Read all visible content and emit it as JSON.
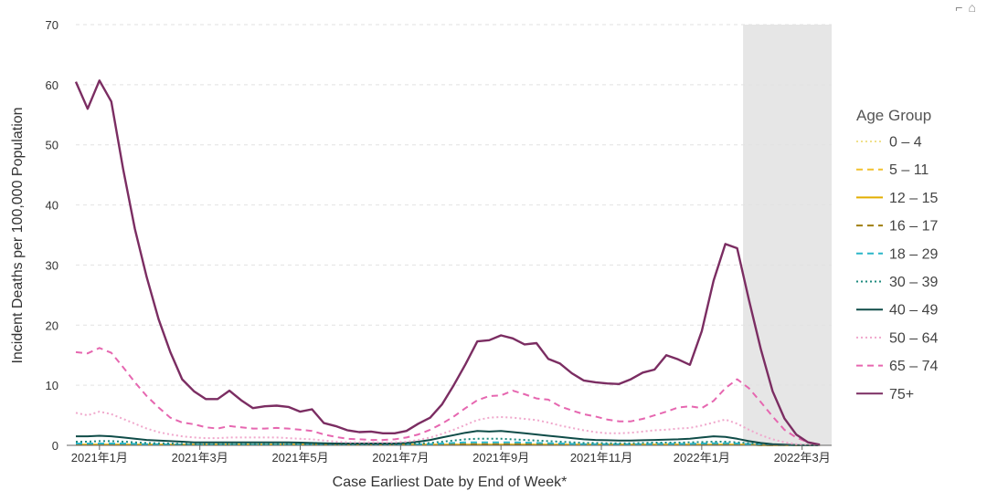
{
  "chart_data": {
    "type": "line",
    "title": "",
    "xlabel": "Case Earliest Date by End of Week*",
    "ylabel": "Incident Deaths per 100,000 Population",
    "ylim": [
      0,
      70
    ],
    "yticks": [
      0,
      10,
      20,
      30,
      40,
      50,
      60,
      70
    ],
    "xlim": [
      0,
      61
    ],
    "xticks": [
      {
        "pos": 2,
        "label": "2021年1月"
      },
      {
        "pos": 10.5,
        "label": "2021年3月"
      },
      {
        "pos": 19,
        "label": "2021年5月"
      },
      {
        "pos": 27.5,
        "label": "2021年7月"
      },
      {
        "pos": 36,
        "label": "2021年9月"
      },
      {
        "pos": 44.5,
        "label": "2021年11月"
      },
      {
        "pos": 53,
        "label": "2022年1月"
      },
      {
        "pos": 61.5,
        "label": "2022年3月"
      }
    ],
    "x_unit": "weeks starting late Dec 2020",
    "shaded_region": [
      56.5,
      62.5
    ],
    "grid": true,
    "legend": {
      "title": "Age Group",
      "placement": "right"
    },
    "series": [
      {
        "name": "0 – 4",
        "color": "#f0e08a",
        "dash": "dot",
        "values": [
          0.1,
          0.1,
          0.1,
          0.1,
          0.1,
          0.1,
          0.1,
          0.1,
          0.1,
          0.1,
          0.1,
          0.1,
          0.1,
          0.1,
          0.1,
          0.1,
          0.1,
          0.1,
          0.1,
          0.1,
          0.1,
          0.1,
          0.1,
          0.1,
          0.1,
          0.1,
          0.1,
          0.1,
          0.1,
          0.1,
          0.1,
          0.1,
          0.1,
          0.1,
          0.1,
          0.1,
          0.1,
          0.1,
          0.1,
          0.1,
          0.1,
          0.1,
          0.1,
          0.1,
          0.1,
          0.1,
          0.1,
          0.1,
          0.1,
          0.1,
          0.1,
          0.1,
          0.1,
          0.1,
          0.1,
          0.1,
          0.1,
          0.1,
          0.05,
          0.02,
          0.01,
          0.0,
          0.0,
          0.0
        ]
      },
      {
        "name": "5 – 11",
        "color": "#f2c12e",
        "dash": "dash",
        "values": [
          0.1,
          0.1,
          0.1,
          0.1,
          0.1,
          0.1,
          0.1,
          0.1,
          0.1,
          0.1,
          0.1,
          0.1,
          0.1,
          0.1,
          0.1,
          0.1,
          0.1,
          0.1,
          0.1,
          0.1,
          0.1,
          0.1,
          0.1,
          0.1,
          0.1,
          0.1,
          0.1,
          0.1,
          0.1,
          0.1,
          0.1,
          0.1,
          0.1,
          0.1,
          0.1,
          0.1,
          0.1,
          0.1,
          0.1,
          0.1,
          0.1,
          0.1,
          0.1,
          0.1,
          0.1,
          0.1,
          0.1,
          0.1,
          0.1,
          0.1,
          0.1,
          0.1,
          0.1,
          0.1,
          0.1,
          0.1,
          0.1,
          0.1,
          0.05,
          0.02,
          0.01,
          0.0,
          0.0,
          0.0
        ]
      },
      {
        "name": "12 – 15",
        "color": "#e2ae00",
        "dash": "solid",
        "values": [
          0.1,
          0.1,
          0.1,
          0.1,
          0.1,
          0.1,
          0.1,
          0.1,
          0.1,
          0.1,
          0.1,
          0.1,
          0.1,
          0.1,
          0.1,
          0.1,
          0.1,
          0.1,
          0.1,
          0.1,
          0.1,
          0.1,
          0.1,
          0.1,
          0.1,
          0.1,
          0.1,
          0.1,
          0.1,
          0.1,
          0.1,
          0.1,
          0.1,
          0.1,
          0.1,
          0.1,
          0.1,
          0.1,
          0.1,
          0.1,
          0.1,
          0.1,
          0.1,
          0.1,
          0.1,
          0.1,
          0.1,
          0.1,
          0.1,
          0.1,
          0.1,
          0.1,
          0.1,
          0.1,
          0.1,
          0.1,
          0.1,
          0.1,
          0.05,
          0.02,
          0.01,
          0.0,
          0.0,
          0.0
        ]
      },
      {
        "name": "16 – 17",
        "color": "#a07f10",
        "dash": "dash",
        "values": [
          0.15,
          0.15,
          0.15,
          0.15,
          0.15,
          0.1,
          0.1,
          0.1,
          0.1,
          0.1,
          0.1,
          0.1,
          0.1,
          0.1,
          0.1,
          0.1,
          0.1,
          0.1,
          0.1,
          0.1,
          0.1,
          0.1,
          0.1,
          0.1,
          0.1,
          0.1,
          0.1,
          0.1,
          0.1,
          0.1,
          0.1,
          0.15,
          0.2,
          0.2,
          0.2,
          0.2,
          0.2,
          0.2,
          0.2,
          0.15,
          0.15,
          0.1,
          0.1,
          0.1,
          0.1,
          0.1,
          0.1,
          0.1,
          0.1,
          0.1,
          0.1,
          0.1,
          0.1,
          0.15,
          0.2,
          0.2,
          0.15,
          0.1,
          0.05,
          0.02,
          0.01,
          0.0,
          0.0,
          0.0
        ]
      },
      {
        "name": "18 – 29",
        "color": "#2bb6c8",
        "dash": "dash",
        "values": [
          0.3,
          0.3,
          0.3,
          0.3,
          0.3,
          0.25,
          0.2,
          0.2,
          0.15,
          0.1,
          0.1,
          0.1,
          0.1,
          0.1,
          0.1,
          0.1,
          0.1,
          0.1,
          0.1,
          0.1,
          0.1,
          0.1,
          0.1,
          0.1,
          0.1,
          0.1,
          0.1,
          0.1,
          0.1,
          0.15,
          0.2,
          0.3,
          0.4,
          0.5,
          0.5,
          0.5,
          0.5,
          0.5,
          0.45,
          0.4,
          0.35,
          0.3,
          0.25,
          0.2,
          0.2,
          0.2,
          0.2,
          0.2,
          0.2,
          0.25,
          0.25,
          0.25,
          0.25,
          0.3,
          0.35,
          0.35,
          0.3,
          0.2,
          0.12,
          0.06,
          0.03,
          0.01,
          0.0,
          0.0
        ]
      },
      {
        "name": "30 – 39",
        "color": "#1d8a7e",
        "dash": "dot",
        "values": [
          0.6,
          0.6,
          0.7,
          0.7,
          0.6,
          0.5,
          0.4,
          0.35,
          0.3,
          0.25,
          0.2,
          0.2,
          0.2,
          0.2,
          0.2,
          0.2,
          0.2,
          0.2,
          0.2,
          0.2,
          0.2,
          0.15,
          0.15,
          0.15,
          0.15,
          0.15,
          0.15,
          0.15,
          0.2,
          0.3,
          0.4,
          0.6,
          0.8,
          1.0,
          1.1,
          1.1,
          1.1,
          1.0,
          0.9,
          0.8,
          0.7,
          0.6,
          0.5,
          0.4,
          0.4,
          0.35,
          0.35,
          0.35,
          0.4,
          0.45,
          0.45,
          0.45,
          0.5,
          0.55,
          0.6,
          0.6,
          0.5,
          0.35,
          0.2,
          0.1,
          0.05,
          0.02,
          0.0,
          0.0
        ]
      },
      {
        "name": "40 – 49",
        "color": "#0f4c48",
        "dash": "solid",
        "values": [
          1.5,
          1.5,
          1.6,
          1.5,
          1.3,
          1.1,
          0.9,
          0.8,
          0.7,
          0.6,
          0.5,
          0.5,
          0.5,
          0.5,
          0.5,
          0.5,
          0.5,
          0.5,
          0.5,
          0.45,
          0.4,
          0.35,
          0.3,
          0.3,
          0.3,
          0.3,
          0.3,
          0.3,
          0.4,
          0.6,
          0.9,
          1.3,
          1.7,
          2.1,
          2.4,
          2.3,
          2.4,
          2.2,
          2.0,
          1.8,
          1.6,
          1.4,
          1.2,
          1.0,
          0.9,
          0.85,
          0.8,
          0.8,
          0.85,
          0.9,
          0.95,
          1.0,
          1.1,
          1.3,
          1.5,
          1.4,
          1.1,
          0.7,
          0.4,
          0.2,
          0.1,
          0.03,
          0.01,
          0.0
        ]
      },
      {
        "name": "50 – 64",
        "color": "#f0a8cc",
        "dash": "dot",
        "values": [
          5.4,
          5.0,
          5.6,
          5.2,
          4.4,
          3.6,
          2.8,
          2.2,
          1.8,
          1.5,
          1.3,
          1.2,
          1.2,
          1.3,
          1.3,
          1.3,
          1.3,
          1.3,
          1.2,
          1.1,
          1.0,
          0.8,
          0.6,
          0.5,
          0.5,
          0.5,
          0.5,
          0.5,
          0.6,
          0.9,
          1.3,
          1.9,
          2.6,
          3.4,
          4.2,
          4.6,
          4.7,
          4.6,
          4.4,
          4.2,
          3.8,
          3.3,
          2.9,
          2.5,
          2.2,
          2.0,
          2.0,
          2.1,
          2.3,
          2.5,
          2.6,
          2.8,
          2.9,
          3.3,
          3.8,
          4.3,
          3.6,
          2.6,
          1.7,
          1.0,
          0.5,
          0.2,
          0.08,
          0.02
        ]
      },
      {
        "name": "65 – 74",
        "color": "#e667b0",
        "dash": "dash",
        "values": [
          15.5,
          15.3,
          16.2,
          15.4,
          13.0,
          10.5,
          8.2,
          6.3,
          4.6,
          3.8,
          3.5,
          3.0,
          2.8,
          3.2,
          3.0,
          2.8,
          2.8,
          2.9,
          2.8,
          2.6,
          2.4,
          1.8,
          1.4,
          1.1,
          1.0,
          0.9,
          0.9,
          1.0,
          1.3,
          1.8,
          2.6,
          3.6,
          4.8,
          6.2,
          7.5,
          8.2,
          8.3,
          9.1,
          8.5,
          7.8,
          7.6,
          6.5,
          5.8,
          5.2,
          4.8,
          4.3,
          4.0,
          4.0,
          4.4,
          5.0,
          5.6,
          6.3,
          6.5,
          6.2,
          7.4,
          9.5,
          11.0,
          9.5,
          7.2,
          4.8,
          2.6,
          1.3,
          0.5,
          0.15
        ]
      },
      {
        "name": "75+",
        "color": "#7b2d62",
        "dash": "solid",
        "values": [
          60.5,
          56.0,
          60.7,
          57.2,
          46.0,
          36.0,
          28.0,
          21.0,
          15.5,
          11.0,
          9.0,
          7.7,
          7.7,
          9.1,
          7.5,
          6.2,
          6.5,
          6.6,
          6.4,
          5.6,
          6.0,
          3.7,
          3.2,
          2.5,
          2.2,
          2.3,
          2.0,
          2.0,
          2.4,
          3.6,
          4.6,
          6.8,
          10.0,
          13.5,
          17.3,
          17.5,
          18.3,
          17.8,
          16.8,
          17.0,
          14.4,
          13.6,
          12.0,
          10.8,
          10.5,
          10.3,
          10.2,
          11.0,
          12.1,
          12.6,
          15.0,
          14.3,
          13.4,
          19.0,
          27.4,
          33.5,
          32.8,
          24.2,
          16.0,
          9.0,
          4.5,
          1.8,
          0.5,
          0.1
        ]
      }
    ]
  }
}
